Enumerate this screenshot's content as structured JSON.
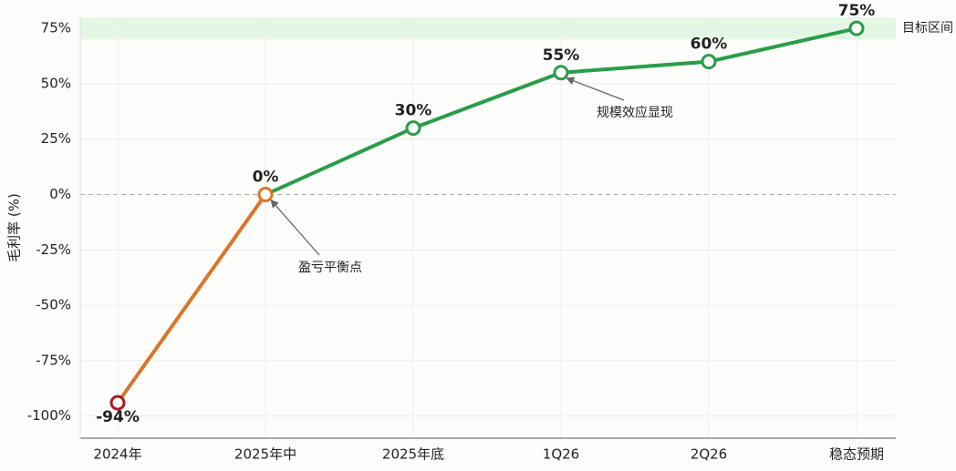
{
  "chart_data": {
    "type": "line",
    "y_label": "毛利率 (%)",
    "categories": [
      "2024年",
      "2025年中",
      "2025年底",
      "1Q26",
      "2Q26",
      "稳态预期"
    ],
    "values": [
      -94,
      0,
      30,
      55,
      60,
      75
    ],
    "value_labels": [
      "-94%",
      "0%",
      "30%",
      "55%",
      "60%",
      "75%"
    ],
    "point_colors": [
      "#a81c24",
      "#d9762a",
      "#2a9d4a",
      "#2a9d4a",
      "#2a9d4a",
      "#2a9d4a"
    ],
    "ylim": [
      -110,
      80
    ],
    "yticks": [
      {
        "value": -100,
        "label": "-100%"
      },
      {
        "value": -75,
        "label": "-75%"
      },
      {
        "value": -50,
        "label": "-50%"
      },
      {
        "value": -25,
        "label": "-25%"
      },
      {
        "value": 0,
        "label": "0%"
      },
      {
        "value": 25,
        "label": "25%"
      },
      {
        "value": 50,
        "label": "50%"
      },
      {
        "value": 75,
        "label": "75%"
      }
    ],
    "grid": true,
    "target_band": {
      "label": "目标区间",
      "range": [
        70,
        80
      ],
      "color": "#d8f3dc"
    },
    "annotations": [
      "盈亏平衡点",
      "规模效应显现"
    ]
  }
}
